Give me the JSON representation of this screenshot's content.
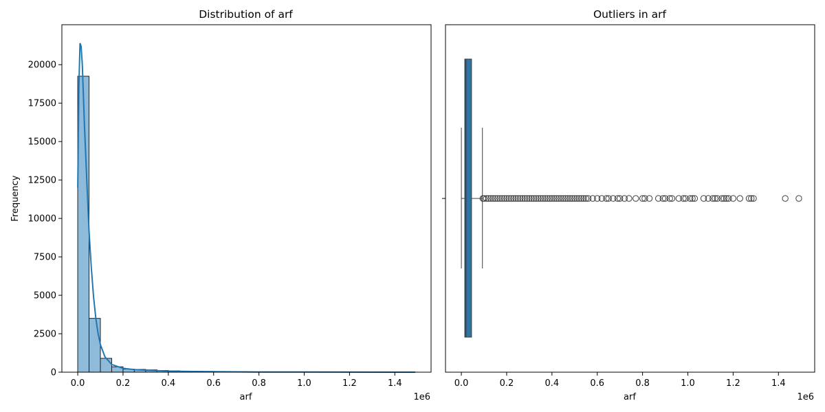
{
  "chart_data": [
    {
      "type": "bar",
      "subtype": "histogram",
      "title": "Distribution of arf",
      "xlabel": "arf",
      "ylabel": "Frequency",
      "x_offset_label": "1e6",
      "xlim": [
        -70000,
        1560000
      ],
      "ylim": [
        0,
        22600
      ],
      "xticks": [
        0,
        0.2,
        0.4,
        0.6,
        0.8,
        1.0,
        1.2,
        1.4
      ],
      "xtick_labels": [
        "0.0",
        "0.2",
        "0.4",
        "0.6",
        "0.8",
        "1.0",
        "1.2",
        "1.4"
      ],
      "yticks": [
        0,
        2500,
        5000,
        7500,
        10000,
        12500,
        15000,
        17500,
        20000
      ],
      "yticks_labels": [
        "0",
        "2500",
        "5000",
        "7500",
        "10000",
        "12500",
        "15000",
        "17500",
        "20000"
      ],
      "bin_width": 50000,
      "bin_start": 0,
      "values": [
        19250,
        3500,
        900,
        350,
        200,
        180,
        150,
        110,
        90,
        70,
        60,
        50,
        40,
        35,
        30,
        25,
        25,
        20,
        15,
        15,
        12,
        12,
        10,
        8,
        8,
        6,
        5,
        4,
        3,
        2
      ],
      "kde": {
        "x": [
          0,
          5000,
          10000,
          15000,
          20000,
          25000,
          30000,
          40000,
          50000,
          60000,
          70000,
          80000,
          90000,
          100000,
          120000,
          150000,
          200000,
          250000,
          300000,
          400000,
          500000,
          600000,
          800000,
          1000000,
          1200000,
          1400000,
          1490000
        ],
        "y": [
          12000,
          18500,
          21400,
          21200,
          20000,
          18000,
          16000,
          12500,
          9200,
          6800,
          4900,
          3500,
          2500,
          1800,
          1000,
          500,
          250,
          170,
          120,
          70,
          45,
          30,
          15,
          8,
          4,
          2,
          1
        ]
      },
      "colors": {
        "bar_fill": "#8ebbd9",
        "bar_edge": "#1f1f1f",
        "kde_line": "#1f77b4"
      }
    },
    {
      "type": "boxplot",
      "title": "Outliers in arf",
      "xlabel": "arf",
      "x_offset_label": "1e6",
      "xlim": [
        -70000,
        1560000
      ],
      "xticks": [
        0,
        0.2,
        0.4,
        0.6,
        0.8,
        1.0,
        1.2,
        1.4
      ],
      "xtick_labels": [
        "0.0",
        "0.2",
        "0.4",
        "0.6",
        "0.8",
        "1.0",
        "1.2",
        "1.4"
      ],
      "box": {
        "whisker_low": 0,
        "q1": 15000,
        "median": 20000,
        "q3": 45000,
        "whisker_high": 93000
      },
      "outliers": [
        95000,
        100000,
        110000,
        120000,
        130000,
        140000,
        150000,
        160000,
        170000,
        180000,
        190000,
        200000,
        210000,
        220000,
        230000,
        240000,
        250000,
        260000,
        270000,
        280000,
        290000,
        300000,
        310000,
        320000,
        330000,
        340000,
        350000,
        360000,
        370000,
        380000,
        390000,
        400000,
        410000,
        420000,
        430000,
        440000,
        450000,
        460000,
        470000,
        480000,
        490000,
        500000,
        510000,
        520000,
        530000,
        540000,
        550000,
        560000,
        580000,
        600000,
        620000,
        640000,
        650000,
        670000,
        690000,
        700000,
        720000,
        740000,
        770000,
        800000,
        810000,
        830000,
        870000,
        890000,
        900000,
        920000,
        930000,
        960000,
        980000,
        990000,
        1010000,
        1020000,
        1030000,
        1070000,
        1090000,
        1110000,
        1120000,
        1130000,
        1150000,
        1160000,
        1170000,
        1180000,
        1200000,
        1230000,
        1270000,
        1280000,
        1290000,
        1430000,
        1490000
      ],
      "colors": {
        "box_fill": "#3274a1",
        "edge": "#3f3f3f",
        "flier_edge": "#3f3f3f"
      }
    }
  ]
}
